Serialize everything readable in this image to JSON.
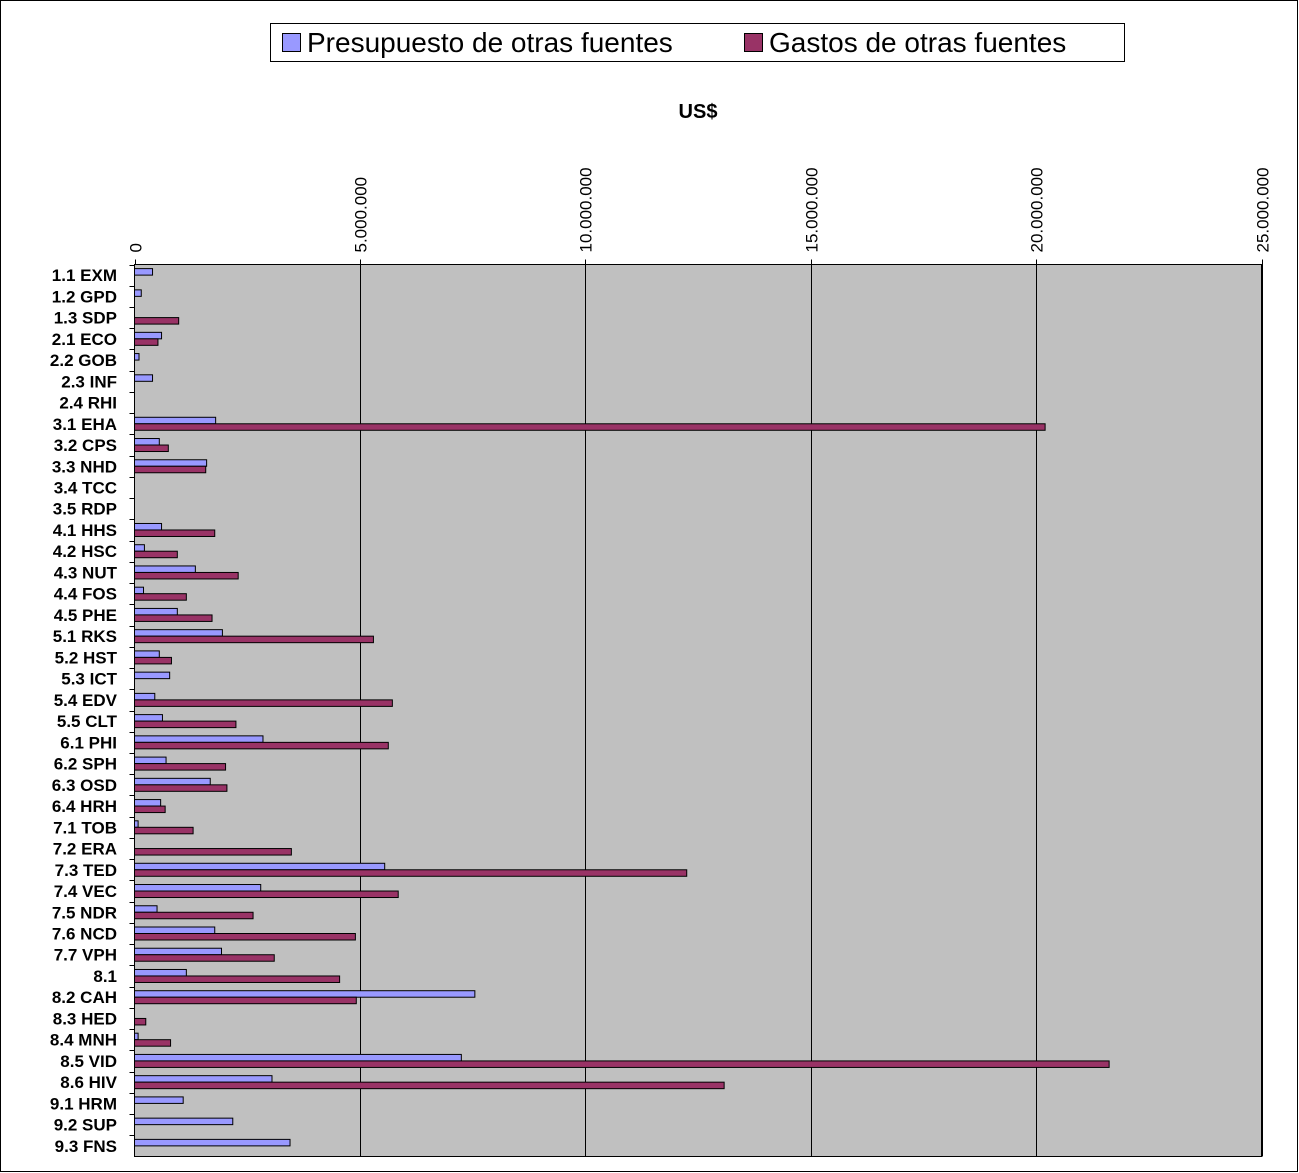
{
  "chart_data": {
    "type": "bar",
    "orientation": "horizontal",
    "title": "",
    "xlabel": "US$",
    "ylabel": "",
    "xlim": [
      0,
      25000000
    ],
    "x_ticks": [
      0,
      5000000,
      10000000,
      15000000,
      20000000,
      25000000
    ],
    "x_tick_labels": [
      "0",
      "5.000.000",
      "10.000.000",
      "15.000.000",
      "20.000.000",
      "25.000.000"
    ],
    "x_axis_position": "top",
    "grid": true,
    "legend_position": "top",
    "categories": [
      "1.1 EXM",
      "1.2 GPD",
      "1.3 SDP",
      "2.1 ECO",
      "2.2 GOB",
      "2.3 INF",
      "2.4 RHI",
      "3.1 EHA",
      "3.2 CPS",
      "3.3 NHD",
      "3.4 TCC",
      "3.5 RDP",
      "4.1 HHS",
      "4.2 HSC",
      "4.3 NUT",
      "4.4 FOS",
      "4.5 PHE",
      "5.1 RKS",
      "5.2 HST",
      "5.3 ICT",
      "5.4 EDV",
      "5.5 CLT",
      "6.1 PHI",
      "6.2 SPH",
      "6.3 OSD",
      "6.4 HRH",
      "7.1 TOB",
      "7.2 ERA",
      "7.3 TED",
      "7.4 VEC",
      "7.5 NDR",
      "7.6 NCD",
      "7.7 VPH",
      "8.1",
      "8.2 CAH",
      "8.3 HED",
      "8.4 MNH",
      "8.5 VID",
      "8.6 HIV",
      "9.1 HRM",
      "9.2 SUP",
      "9.3 FNS"
    ],
    "series": [
      {
        "name": "Presupuesto de otras fuentes",
        "color": "#9999ff",
        "values": [
          400000,
          150000,
          0,
          600000,
          100000,
          400000,
          0,
          1800000,
          550000,
          1600000,
          0,
          0,
          600000,
          220000,
          1350000,
          200000,
          950000,
          1950000,
          550000,
          780000,
          450000,
          620000,
          2850000,
          700000,
          1680000,
          580000,
          80000,
          0,
          5550000,
          2800000,
          500000,
          1780000,
          1930000,
          1150000,
          7550000,
          0,
          80000,
          7250000,
          3050000,
          1080000,
          2180000,
          3450000
        ]
      },
      {
        "name": "Gastos de otras fuentes",
        "color": "#993366",
        "values": [
          0,
          0,
          980000,
          520000,
          0,
          0,
          0,
          20200000,
          750000,
          1580000,
          0,
          0,
          1780000,
          950000,
          2300000,
          1150000,
          1720000,
          5300000,
          820000,
          0,
          5720000,
          2250000,
          5630000,
          2020000,
          2050000,
          680000,
          1300000,
          3480000,
          12250000,
          5850000,
          2630000,
          4900000,
          3100000,
          4550000,
          4920000,
          250000,
          800000,
          21620000,
          13080000,
          0,
          0,
          0
        ]
      }
    ]
  }
}
